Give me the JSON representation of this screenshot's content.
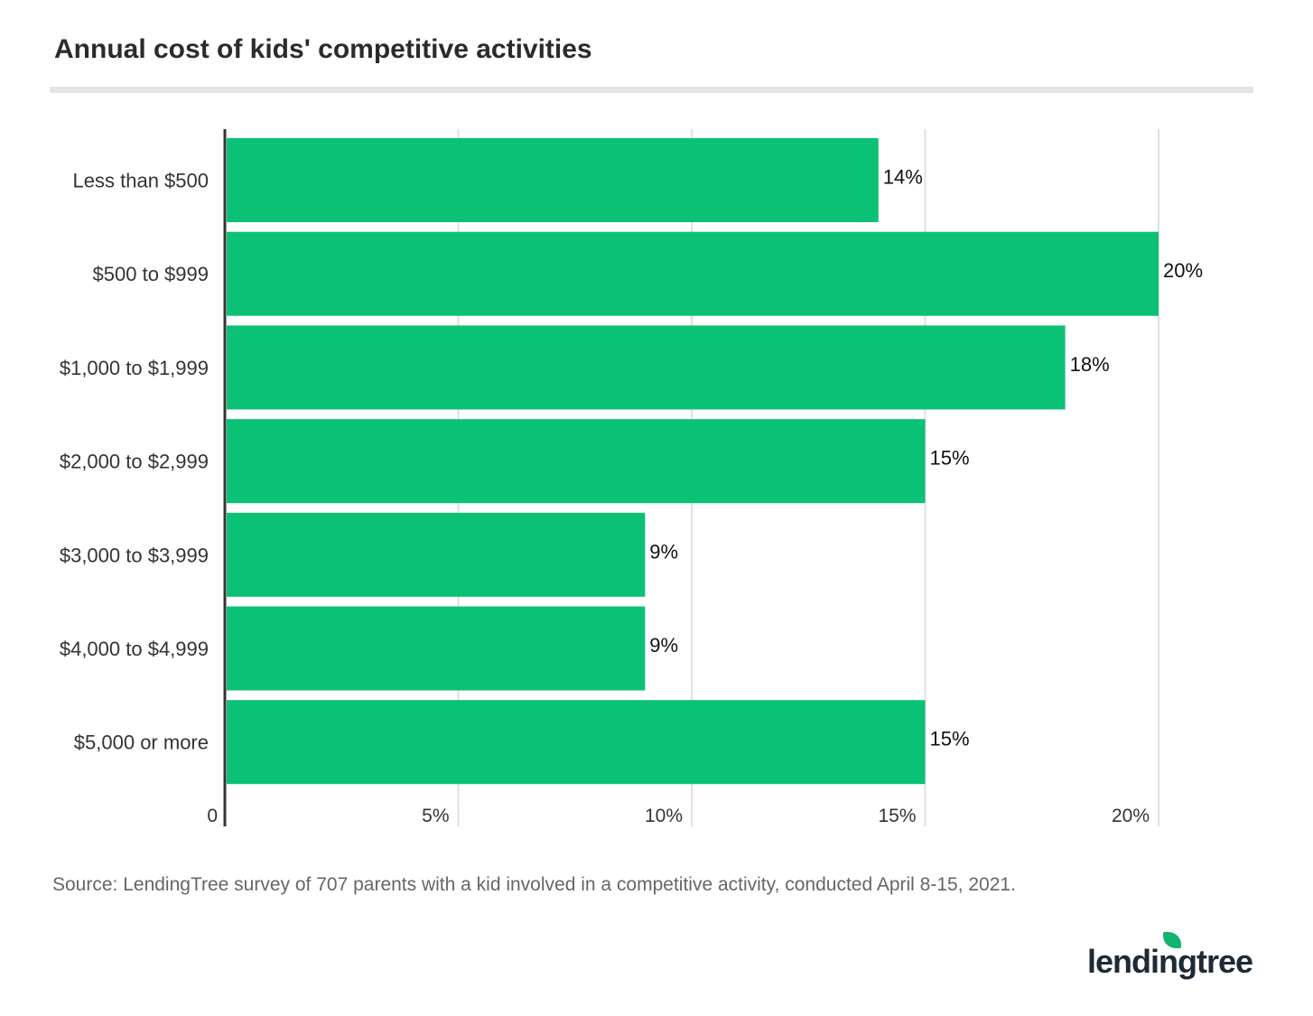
{
  "title": "Annual cost of kids' competitive activities",
  "source": "Source: LendingTree survey of 707 parents with a kid involved in a competitive activity, conducted April 8-15, 2021.",
  "logo": "lendingtree",
  "colors": {
    "bar": "#0bc175",
    "axis": "#333333",
    "grid": "#e0e0e0"
  },
  "chart_data": {
    "type": "bar",
    "orientation": "horizontal",
    "categories": [
      "Less than $500",
      "$500 to $999",
      "$1,000 to $1,999",
      "$2,000 to $2,999",
      "$3,000 to $3,999",
      "$4,000 to $4,999",
      "$5,000 or more"
    ],
    "values": [
      14,
      20,
      18,
      15,
      9,
      9,
      15
    ],
    "data_labels": [
      "14%",
      "20%",
      "18%",
      "15%",
      "9%",
      "9%",
      "15%"
    ],
    "xlim": [
      0,
      20
    ],
    "x_ticks": [
      0,
      5,
      10,
      15,
      20
    ],
    "x_tick_labels": [
      "0",
      "5%",
      "10%",
      "15%",
      "20%"
    ],
    "grid": true
  }
}
